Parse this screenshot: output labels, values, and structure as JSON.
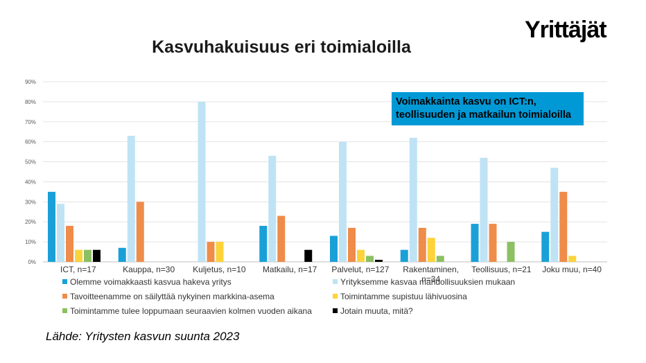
{
  "logo_text": "Yrittäjät",
  "source": "Lähde: Yritysten kasvun suunta 2023",
  "callout": {
    "line1": "Voimakkainta kasvu on ICT:n,",
    "line2": "teollisuuden ja matkailun toimialoilla"
  },
  "chart_data": {
    "type": "bar",
    "title": "Kasvuhakuisuus eri toimialoilla",
    "categories": [
      "ICT, n=17",
      "Kauppa, n=30",
      "Kuljetus, n=10",
      "Matkailu, n=17",
      "Palvelut, n=127",
      "Rakentaminen, n=34",
      "Teollisuus, n=21",
      "Joku muu, n=40"
    ],
    "y_ticks": [
      "0%",
      "10%",
      "20%",
      "30%",
      "40%",
      "50%",
      "60%",
      "70%",
      "80%",
      "90%"
    ],
    "ylim": [
      0,
      90
    ],
    "grid": true,
    "legend_position": "bottom",
    "series": [
      {
        "name": "Olemme voimakkaasti kasvua hakeva yritys",
        "color": "#1aa0d8",
        "values": [
          35,
          7,
          0,
          18,
          13,
          6,
          19,
          15
        ]
      },
      {
        "name": "Yrityksemme kasvaa mahdollisuuksien mukaan",
        "color": "#bfe3f5",
        "values": [
          29,
          63,
          80,
          53,
          60,
          62,
          52,
          47
        ]
      },
      {
        "name": "Tavoitteenamme on säilyttää nykyinen markkina-asema",
        "color": "#ef8c4a",
        "values": [
          18,
          30,
          10,
          23,
          17,
          17,
          19,
          35
        ]
      },
      {
        "name": "Toimintamme supistuu lähivuosina",
        "color": "#fcd33a",
        "values": [
          6,
          0,
          10,
          0,
          6,
          12,
          0,
          3
        ]
      },
      {
        "name": "Toimintamme tulee loppumaan seuraavien kolmen vuoden aikana",
        "color": "#8cc063",
        "values": [
          6,
          0,
          0,
          0,
          3,
          3,
          10,
          0
        ]
      },
      {
        "name": "Jotain muuta, mitä?",
        "color": "#000000",
        "values": [
          6,
          0,
          0,
          6,
          1,
          0,
          0,
          0
        ]
      }
    ]
  }
}
